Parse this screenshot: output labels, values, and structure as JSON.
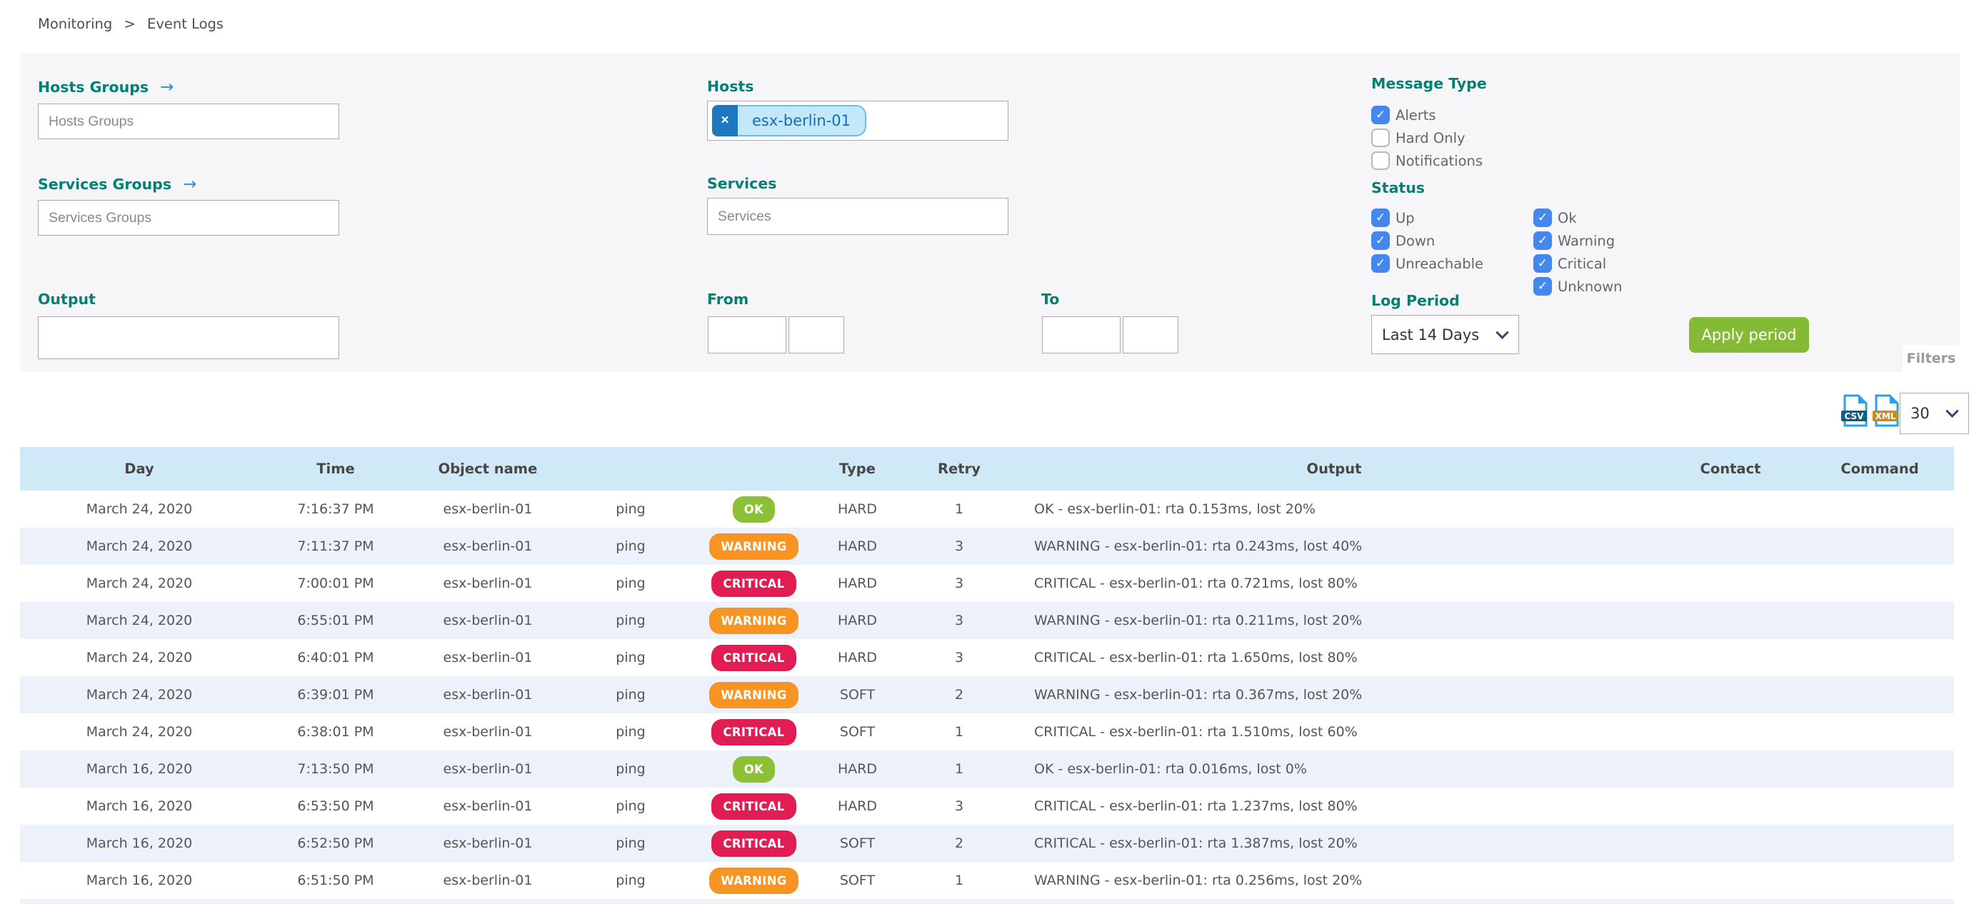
{
  "breadcrumb": {
    "items": [
      "Monitoring",
      "Event Logs"
    ],
    "separator": ">"
  },
  "filter_panel": {
    "hosts_groups": {
      "label": "Hosts Groups",
      "placeholder": "Hosts Groups",
      "arrow_glyph": "→"
    },
    "hosts": {
      "label": "Hosts",
      "tags": [
        {
          "label": "esx-berlin-01",
          "remove_glyph": "×"
        }
      ]
    },
    "services_groups": {
      "label": "Services Groups",
      "placeholder": "Services Groups",
      "arrow_glyph": "→"
    },
    "services": {
      "label": "Services",
      "placeholder": "Services"
    },
    "output": {
      "label": "Output",
      "value": ""
    },
    "from": {
      "label": "From",
      "date": "",
      "time": ""
    },
    "to": {
      "label": "To",
      "date": "",
      "time": ""
    },
    "message_type": {
      "label": "Message Type",
      "options": [
        {
          "label": "Alerts",
          "checked": true
        },
        {
          "label": "Hard Only",
          "checked": false
        },
        {
          "label": "Notifications",
          "checked": false
        }
      ]
    },
    "status": {
      "label": "Status",
      "host_options": [
        {
          "label": "Up",
          "checked": true
        },
        {
          "label": "Down",
          "checked": true
        },
        {
          "label": "Unreachable",
          "checked": true
        }
      ],
      "service_options": [
        {
          "label": "Ok",
          "checked": true
        },
        {
          "label": "Warning",
          "checked": true
        },
        {
          "label": "Critical",
          "checked": true
        },
        {
          "label": "Unknown",
          "checked": true
        }
      ]
    },
    "log_period": {
      "label": "Log Period",
      "selected": "Last 14 Days"
    },
    "apply_button_label": "Apply period",
    "filters_tab_label": "Filters"
  },
  "toolbar": {
    "export_csv_label": "CSV",
    "export_xml_label": "XML",
    "page_size": "30"
  },
  "table": {
    "columns": [
      "Day",
      "Time",
      "Object name",
      "",
      "",
      "Type",
      "Retry",
      "Output",
      "Contact",
      "Command"
    ],
    "rows": [
      {
        "day": "March 24, 2020",
        "time": "7:16:37 PM",
        "object": "esx-berlin-01",
        "service": "ping",
        "status": "OK",
        "type": "HARD",
        "retry": "1",
        "output": "OK - esx-berlin-01: rta 0.153ms, lost 20%",
        "contact": "",
        "command": ""
      },
      {
        "day": "March 24, 2020",
        "time": "7:11:37 PM",
        "object": "esx-berlin-01",
        "service": "ping",
        "status": "WARNING",
        "type": "HARD",
        "retry": "3",
        "output": "WARNING - esx-berlin-01: rta 0.243ms, lost 40%",
        "contact": "",
        "command": ""
      },
      {
        "day": "March 24, 2020",
        "time": "7:00:01 PM",
        "object": "esx-berlin-01",
        "service": "ping",
        "status": "CRITICAL",
        "type": "HARD",
        "retry": "3",
        "output": "CRITICAL - esx-berlin-01: rta 0.721ms, lost 80%",
        "contact": "",
        "command": ""
      },
      {
        "day": "March 24, 2020",
        "time": "6:55:01 PM",
        "object": "esx-berlin-01",
        "service": "ping",
        "status": "WARNING",
        "type": "HARD",
        "retry": "3",
        "output": "WARNING - esx-berlin-01: rta 0.211ms, lost 20%",
        "contact": "",
        "command": ""
      },
      {
        "day": "March 24, 2020",
        "time": "6:40:01 PM",
        "object": "esx-berlin-01",
        "service": "ping",
        "status": "CRITICAL",
        "type": "HARD",
        "retry": "3",
        "output": "CRITICAL - esx-berlin-01: rta 1.650ms, lost 80%",
        "contact": "",
        "command": ""
      },
      {
        "day": "March 24, 2020",
        "time": "6:39:01 PM",
        "object": "esx-berlin-01",
        "service": "ping",
        "status": "WARNING",
        "type": "SOFT",
        "retry": "2",
        "output": "WARNING - esx-berlin-01: rta 0.367ms, lost 20%",
        "contact": "",
        "command": ""
      },
      {
        "day": "March 24, 2020",
        "time": "6:38:01 PM",
        "object": "esx-berlin-01",
        "service": "ping",
        "status": "CRITICAL",
        "type": "SOFT",
        "retry": "1",
        "output": "CRITICAL - esx-berlin-01: rta 1.510ms, lost 60%",
        "contact": "",
        "command": ""
      },
      {
        "day": "March 16, 2020",
        "time": "7:13:50 PM",
        "object": "esx-berlin-01",
        "service": "ping",
        "status": "OK",
        "type": "HARD",
        "retry": "1",
        "output": "OK - esx-berlin-01: rta 0.016ms, lost 0%",
        "contact": "",
        "command": ""
      },
      {
        "day": "March 16, 2020",
        "time": "6:53:50 PM",
        "object": "esx-berlin-01",
        "service": "ping",
        "status": "CRITICAL",
        "type": "HARD",
        "retry": "3",
        "output": "CRITICAL - esx-berlin-01: rta 1.237ms, lost 80%",
        "contact": "",
        "command": ""
      },
      {
        "day": "March 16, 2020",
        "time": "6:52:50 PM",
        "object": "esx-berlin-01",
        "service": "ping",
        "status": "CRITICAL",
        "type": "SOFT",
        "retry": "2",
        "output": "CRITICAL - esx-berlin-01: rta 1.387ms, lost 20%",
        "contact": "",
        "command": ""
      },
      {
        "day": "March 16, 2020",
        "time": "6:51:50 PM",
        "object": "esx-berlin-01",
        "service": "ping",
        "status": "WARNING",
        "type": "SOFT",
        "retry": "1",
        "output": "WARNING - esx-berlin-01: rta 0.256ms, lost 20%",
        "contact": "",
        "command": ""
      }
    ]
  },
  "colors": {
    "accent_teal": "#038074",
    "checkbox_blue": "#4687ee",
    "button_green": "#85ba36",
    "header_blue": "#cfeaf6",
    "row_alt": "#edf1fa",
    "badge_ok": "#8cc135",
    "badge_warning": "#f79422",
    "badge_critical": "#e21d53",
    "csv_ribbon": "#135d80",
    "xml_ribbon": "#bf8f1f"
  }
}
